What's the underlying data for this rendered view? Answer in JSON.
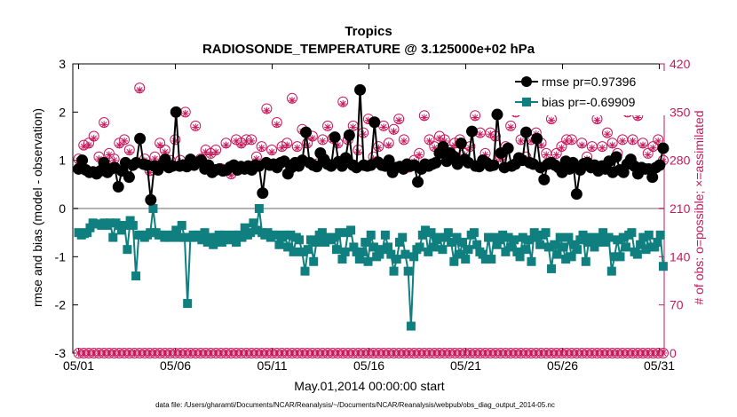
{
  "chart_data": {
    "type": "line",
    "title": "Tropics",
    "subtitle": "RADIOSONDE_TEMPERATURE @ 3.125000e+02 hPa",
    "xlabel": "May.01,2014 00:00:00 start",
    "ylabel": "rmse and bias (model - observation)",
    "ylabel_right": "# of obs: o=possible; ×=assimilated",
    "footnote": "data file: /Users/gharamti/Documents/NCAR/Reanalysis/~/Documents/NCAR/Reanalysis/webpub/obs_diag_output_2014-05.nc",
    "xlim": [
      0.7,
      31.25
    ],
    "ylim": [
      -3,
      3
    ],
    "ylim_right": [
      0,
      420
    ],
    "x_ticks": [
      1,
      6,
      11,
      16,
      21,
      26,
      31
    ],
    "x_tick_labels": [
      "05/01",
      "05/06",
      "05/11",
      "05/16",
      "05/21",
      "05/26",
      "05/31"
    ],
    "y_ticks": [
      -3,
      -2,
      -1,
      0,
      1,
      2,
      3
    ],
    "y_tick_labels": [
      "-3",
      "-2",
      "-1",
      "0",
      "1",
      "2",
      "3"
    ],
    "y_ticks_right": [
      0,
      70,
      140,
      210,
      280,
      350,
      420
    ],
    "y_tick_labels_right": [
      "0",
      "70",
      "140",
      "210",
      "280",
      "350",
      "420"
    ],
    "legend_position": "top-right",
    "colors": {
      "rmse": "#000000",
      "bias": "#0f7f7f",
      "obs": "#c8185c",
      "zero": "#b4b4b4"
    },
    "series": [
      {
        "name": "rmse pr=0.97396",
        "color": "#000000",
        "values": [
          0.82,
          1.0,
          0.8,
          0.75,
          0.76,
          0.72,
          0.78,
          0.95,
          0.75,
          0.82,
          0.85,
          0.45,
          0.78,
          0.95,
          0.65,
          0.9,
          0.95,
          1.45,
          0.92,
          0.9,
          0.18,
          0.88,
          0.8,
          0.9,
          1.02,
          0.85,
          0.88,
          2.0,
          0.88,
          0.9,
          0.87,
          1.02,
          0.9,
          0.96,
          1.0,
          0.82,
          0.9,
          0.75,
          0.8,
          0.82,
          0.78,
          0.8,
          0.86,
          0.9,
          0.8,
          0.87,
          0.82,
          0.88,
          0.8,
          0.9,
          0.88,
          0.32,
          0.95,
          0.9,
          0.92,
          0.85,
          0.95,
          0.98,
          0.72,
          0.85,
          0.95,
          0.88,
          1.0,
          1.58,
          0.95,
          0.9,
          0.87,
          1.15,
          1.02,
          0.92,
          0.88,
          1.48,
          0.97,
          0.88,
          1.05,
          1.52,
          0.9,
          0.85,
          2.46,
          0.9,
          0.88,
          0.9,
          1.79,
          0.96,
          0.9,
          0.88,
          1.0,
          0.75,
          0.85,
          0.87,
          0.82,
          0.92,
          0.88,
          0.9,
          0.55,
          0.82,
          0.92,
          0.88,
          0.92,
          0.95,
          1.15,
          1.28,
          0.98,
          1.15,
          1.08,
          0.92,
          1.35,
          1.02,
          0.95,
          1.6,
          0.88,
          0.87,
          1.0,
          0.95,
          0.88,
          0.9,
          1.95,
          1.15,
          0.85,
          1.25,
          0.88,
          0.92,
          1.05,
          1.0,
          1.58,
          0.95,
          0.92,
          1.45,
          0.85,
          0.6,
          0.92,
          0.95,
          0.9,
          0.85,
          0.75,
          0.98,
          0.82,
          0.95,
          0.3,
          0.8,
          0.93,
          0.95,
          0.85,
          0.9,
          0.78,
          0.88,
          0.82,
          0.98,
          0.75,
          1.07,
          0.8,
          0.75,
          0.92,
          1.02,
          0.88,
          0.72,
          0.85,
          0.82,
          0.82,
          0.65,
          0.85,
          0.9,
          1.25
        ]
      },
      {
        "name": "bias pr=-0.69909",
        "color": "#0f7f7f",
        "values": [
          -0.5,
          -0.55,
          -0.52,
          -0.5,
          -0.4,
          -0.3,
          -0.32,
          -0.32,
          -0.35,
          -0.3,
          -0.35,
          -0.3,
          -0.6,
          -0.3,
          -0.35,
          -0.45,
          -0.35,
          -0.85,
          -0.25,
          -0.35,
          -1.4,
          -0.55,
          -0.55,
          -0.6,
          -0.55,
          -0.5,
          0.0,
          -0.5,
          -0.55,
          -0.55,
          -0.6,
          -0.55,
          -0.6,
          -0.55,
          -0.45,
          -0.6,
          -0.35,
          -0.6,
          -1.97,
          -0.6,
          -0.55,
          -0.6,
          -0.55,
          -0.65,
          -0.5,
          -0.7,
          -0.6,
          -0.75,
          -0.6,
          -0.55,
          -0.7,
          -0.55,
          -0.65,
          -0.6,
          -0.55,
          -0.7,
          -0.55,
          -0.6,
          -0.4,
          -0.55,
          -0.5,
          -0.3,
          -0.45,
          0.0,
          -0.5,
          -0.55,
          -0.5,
          -0.6,
          -0.55,
          -0.55,
          -0.75,
          -0.6,
          -0.55,
          -0.8,
          -0.55,
          -0.9,
          -0.6,
          -0.65,
          -0.9,
          -1.3,
          -0.85,
          -0.65,
          -1.1,
          -0.7,
          -0.55,
          -0.5,
          -0.7,
          -0.6,
          -0.65,
          -0.6,
          -0.85,
          -0.5,
          -1.05,
          -0.9,
          -0.5,
          -0.45,
          -0.8,
          -0.9,
          -1.05,
          -0.9,
          -0.7,
          -1.1,
          -0.55,
          -0.8,
          -1.0,
          -0.95,
          -0.85,
          -0.55,
          -0.8,
          -0.95,
          -1.3,
          -1.05,
          -0.7,
          -0.6,
          -0.95,
          -1.3,
          -2.44,
          -1.0,
          -0.85,
          -0.8,
          -0.55,
          -0.45,
          -0.9,
          -0.5,
          -0.8,
          -0.65,
          -0.6,
          -0.85,
          -0.6,
          -0.5,
          -0.7,
          -1.1,
          -0.6,
          -0.95,
          -0.7,
          -1.05,
          -0.85,
          -0.55,
          -0.5,
          -0.75,
          -0.9,
          -0.95,
          -1.05,
          -0.6,
          -1.05,
          -0.6,
          -0.75,
          -0.65,
          -0.55,
          -0.9,
          -0.6,
          -0.8,
          -0.65,
          -0.9,
          -1.0,
          -0.6,
          -0.85,
          -0.65,
          -1.1,
          -0.5,
          -0.6,
          -0.75,
          -0.55,
          -0.5,
          -0.8,
          -1.25,
          -0.75,
          -0.95,
          -0.6,
          -0.8,
          -1.05,
          -0.6,
          -1.0,
          -0.75,
          -0.85,
          -0.65,
          -0.55,
          -1.1,
          -0.7,
          -0.6,
          -0.8,
          -0.7,
          -0.6,
          -0.5,
          -0.7,
          -0.6,
          -1.3,
          -1.0,
          -0.65,
          -1.0,
          -0.6,
          -0.8,
          -0.55,
          -0.5,
          -0.9,
          -0.95,
          -0.75,
          -0.6,
          -0.85,
          -0.55,
          -0.8,
          -0.8,
          -0.7,
          -0.55,
          -1.2
        ]
      },
      {
        "name": "obs possible",
        "color": "#c8185c",
        "axis": "right",
        "values": [
          282,
          302,
          305,
          315,
          285,
          335,
          290,
          282,
          305,
          310,
          295,
          275,
          385,
          282,
          265,
          285,
          305,
          295,
          280,
          310,
          280,
          350,
          275,
          330,
          282,
          295,
          290,
          295,
          268,
          305,
          260,
          310,
          305,
          310,
          310,
          285,
          300,
          355,
          295,
          335,
          300,
          305,
          370,
          300,
          325,
          305,
          315,
          275,
          310,
          330,
          312,
          305,
          365,
          310,
          330,
          295,
          320,
          340,
          285,
          300,
          330,
          305,
          325,
          340,
          310,
          270,
          280,
          290,
          345,
          310,
          300,
          315,
          310,
          295,
          305,
          310,
          290,
          300,
          345,
          320,
          290,
          320,
          315,
          285,
          300,
          330,
          350,
          310,
          285,
          310,
          320,
          305,
          290,
          340,
          290,
          300,
          310,
          310,
          355,
          305,
          285,
          300,
          340,
          300,
          320,
          305,
          290,
          310,
          350,
          310,
          345,
          305,
          290,
          300,
          310,
          280
        ]
      },
      {
        "name": "obs assimilated",
        "color": "#c8185c",
        "axis": "right",
        "values": [
          280,
          300,
          302,
          312,
          282,
          332,
          288,
          280,
          302,
          308,
          292,
          272,
          382,
          280,
          262,
          282,
          302,
          292,
          278,
          308,
          278,
          348,
          272,
          328,
          280,
          292,
          288,
          292,
          266,
          302,
          258,
          308,
          302,
          308,
          308,
          282,
          298,
          352,
          292,
          332,
          298,
          302,
          367,
          298,
          322,
          302,
          312,
          272,
          308,
          328,
          310,
          302,
          362,
          308,
          328,
          292,
          318,
          338,
          282,
          298,
          328,
          302,
          322,
          338,
          308,
          268,
          278,
          288,
          342,
          308,
          298,
          312,
          308,
          292,
          302,
          308,
          288,
          298,
          342,
          318,
          288,
          318,
          312,
          282,
          298,
          328,
          348,
          308,
          282,
          308,
          318,
          302,
          288,
          338,
          288,
          298,
          308,
          308,
          352,
          302,
          282,
          298,
          338,
          298,
          318,
          302,
          288,
          308,
          348,
          308,
          342,
          302,
          288,
          298,
          308,
          278
        ]
      }
    ]
  }
}
